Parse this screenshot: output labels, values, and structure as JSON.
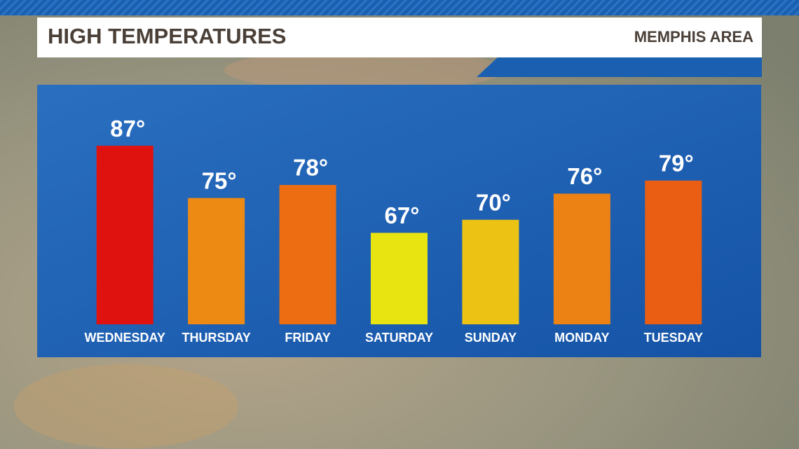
{
  "chart_data": {
    "type": "bar",
    "title": "HIGH TEMPERATURES",
    "subtitle": "MEMPHIS AREA",
    "categories": [
      "WEDNESDAY",
      "THURSDAY",
      "FRIDAY",
      "SATURDAY",
      "SUNDAY",
      "MONDAY",
      "TUESDAY"
    ],
    "values": [
      87,
      75,
      78,
      67,
      70,
      76,
      79
    ],
    "value_labels": [
      "87°",
      "75°",
      "78°",
      "67°",
      "70°",
      "76°",
      "79°"
    ],
    "colors": [
      "#e0120f",
      "#ec8a14",
      "#ec6d12",
      "#e8e412",
      "#ecc214",
      "#ec8214",
      "#e95e12"
    ],
    "ylim": [
      46,
      101
    ]
  }
}
